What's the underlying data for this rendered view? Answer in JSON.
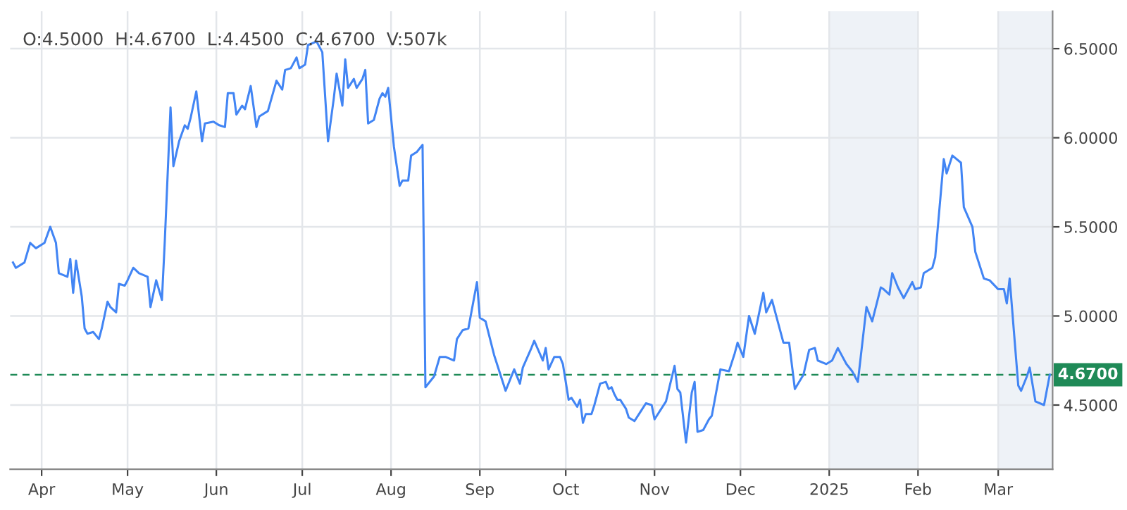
{
  "chart_data": {
    "type": "line",
    "annotations": [
      "O:4.5000  H:4.6700  L:4.4500  C:4.6700  V:507k"
    ],
    "x": [
      "2024-03-22",
      "2024-03-23",
      "2024-03-26",
      "2024-03-28",
      "2024-03-30",
      "2024-04-02",
      "2024-04-04",
      "2024-04-06",
      "2024-04-07",
      "2024-04-10",
      "2024-04-11",
      "2024-04-12",
      "2024-04-13",
      "2024-04-15",
      "2024-04-16",
      "2024-04-17",
      "2024-04-19",
      "2024-04-21",
      "2024-04-22",
      "2024-04-24",
      "2024-04-25",
      "2024-04-27",
      "2024-04-28",
      "2024-04-30",
      "2024-05-01",
      "2024-05-03",
      "2024-05-05",
      "2024-05-08",
      "2024-05-09",
      "2024-05-11",
      "2024-05-13",
      "2024-05-14",
      "2024-05-16",
      "2024-05-17",
      "2024-05-19",
      "2024-05-21",
      "2024-05-22",
      "2024-05-23",
      "2024-05-25",
      "2024-05-27",
      "2024-05-28",
      "2024-05-31",
      "2024-06-02",
      "2024-06-04",
      "2024-06-05",
      "2024-06-07",
      "2024-06-08",
      "2024-06-10",
      "2024-06-11",
      "2024-06-13",
      "2024-06-15",
      "2024-06-16",
      "2024-06-19",
      "2024-06-22",
      "2024-06-24",
      "2024-06-25",
      "2024-06-27",
      "2024-06-29",
      "2024-06-30",
      "2024-07-02",
      "2024-07-03",
      "2024-07-06",
      "2024-07-08",
      "2024-07-10",
      "2024-07-12",
      "2024-07-13",
      "2024-07-15",
      "2024-07-16",
      "2024-07-17",
      "2024-07-19",
      "2024-07-20",
      "2024-07-22",
      "2024-07-23",
      "2024-07-24",
      "2024-07-26",
      "2024-07-28",
      "2024-07-29",
      "2024-07-30",
      "2024-07-31",
      "2024-08-02",
      "2024-08-04",
      "2024-08-05",
      "2024-08-07",
      "2024-08-08",
      "2024-08-10",
      "2024-08-12",
      "2024-08-13",
      "2024-08-16",
      "2024-08-18",
      "2024-08-20",
      "2024-08-23",
      "2024-08-24",
      "2024-08-26",
      "2024-08-28",
      "2024-08-31",
      "2024-09-01",
      "2024-09-03",
      "2024-09-06",
      "2024-09-08",
      "2024-09-10",
      "2024-09-13",
      "2024-09-15",
      "2024-09-16",
      "2024-09-19",
      "2024-09-20",
      "2024-09-23",
      "2024-09-24",
      "2024-09-25",
      "2024-09-27",
      "2024-09-29",
      "2024-09-30",
      "2024-10-02",
      "2024-10-03",
      "2024-10-05",
      "2024-10-06",
      "2024-10-07",
      "2024-10-08",
      "2024-10-10",
      "2024-10-11",
      "2024-10-13",
      "2024-10-15",
      "2024-10-16",
      "2024-10-17",
      "2024-10-18",
      "2024-10-19",
      "2024-10-20",
      "2024-10-22",
      "2024-10-23",
      "2024-10-25",
      "2024-10-27",
      "2024-10-29",
      "2024-10-31",
      "2024-11-01",
      "2024-11-05",
      "2024-11-08",
      "2024-11-09",
      "2024-11-10",
      "2024-11-12",
      "2024-11-14",
      "2024-11-15",
      "2024-11-16",
      "2024-11-18",
      "2024-11-20",
      "2024-11-21",
      "2024-11-24",
      "2024-11-27",
      "2024-11-29",
      "2024-11-30",
      "2024-12-02",
      "2024-12-04",
      "2024-12-06",
      "2024-12-09",
      "2024-12-10",
      "2024-12-12",
      "2024-12-14",
      "2024-12-16",
      "2024-12-18",
      "2024-12-20",
      "2024-12-23",
      "2024-12-25",
      "2024-12-27",
      "2024-12-28",
      "2024-12-31",
      "2025-01-02",
      "2025-01-04",
      "2025-01-05",
      "2025-01-07",
      "2025-01-09",
      "2025-01-11",
      "2025-01-14",
      "2025-01-16",
      "2025-01-19",
      "2025-01-20",
      "2025-01-22",
      "2025-01-23",
      "2025-01-25",
      "2025-01-27",
      "2025-01-30",
      "2025-01-31",
      "2025-02-02",
      "2025-02-03",
      "2025-02-06",
      "2025-02-07",
      "2025-02-10",
      "2025-02-11",
      "2025-02-13",
      "2025-02-16",
      "2025-02-17",
      "2025-02-20",
      "2025-02-21",
      "2025-02-24",
      "2025-02-26",
      "2025-03-01",
      "2025-03-03",
      "2025-03-04",
      "2025-03-05",
      "2025-03-08",
      "2025-03-09",
      "2025-03-11",
      "2025-03-12",
      "2025-03-14",
      "2025-03-17",
      "2025-03-19"
    ],
    "series": [
      {
        "color": "#4285f4",
        "values": [
          5.3,
          5.27,
          5.3,
          5.41,
          5.38,
          5.41,
          5.5,
          5.41,
          5.24,
          5.22,
          5.32,
          5.13,
          5.31,
          5.11,
          4.93,
          4.9,
          4.91,
          4.87,
          4.93,
          5.08,
          5.05,
          5.02,
          5.18,
          5.17,
          5.2,
          5.27,
          5.24,
          5.22,
          5.05,
          5.2,
          5.09,
          5.42,
          6.17,
          5.84,
          5.98,
          6.07,
          6.05,
          6.11,
          6.26,
          5.98,
          6.08,
          6.09,
          6.07,
          6.06,
          6.25,
          6.25,
          6.13,
          6.18,
          6.16,
          6.29,
          6.06,
          6.12,
          6.15,
          6.32,
          6.27,
          6.38,
          6.39,
          6.45,
          6.39,
          6.41,
          6.52,
          6.54,
          6.48,
          5.98,
          6.22,
          6.36,
          6.18,
          6.44,
          6.28,
          6.33,
          6.28,
          6.33,
          6.38,
          6.08,
          6.1,
          6.22,
          6.25,
          6.23,
          6.28,
          5.95,
          5.73,
          5.76,
          5.76,
          5.9,
          5.92,
          5.96,
          4.6,
          4.66,
          4.77,
          4.77,
          4.75,
          4.87,
          4.92,
          4.93,
          5.19,
          4.99,
          4.97,
          4.78,
          4.68,
          4.58,
          4.7,
          4.62,
          4.71,
          4.82,
          4.86,
          4.75,
          4.82,
          4.7,
          4.77,
          4.77,
          4.73,
          4.53,
          4.54,
          4.49,
          4.53,
          4.4,
          4.45,
          4.45,
          4.5,
          4.62,
          4.63,
          4.59,
          4.6,
          4.56,
          4.53,
          4.53,
          4.48,
          4.43,
          4.41,
          4.46,
          4.51,
          4.5,
          4.42,
          4.52,
          4.72,
          4.59,
          4.57,
          4.29,
          4.57,
          4.63,
          4.35,
          4.36,
          4.42,
          4.44,
          4.7,
          4.69,
          4.79,
          4.85,
          4.77,
          5.0,
          4.9,
          5.13,
          5.02,
          5.09,
          4.97,
          4.85,
          4.85,
          4.59,
          4.67,
          4.81,
          4.82,
          4.75,
          4.73,
          4.75,
          4.82,
          4.79,
          4.73,
          4.69,
          4.63,
          5.05,
          4.97,
          5.16,
          5.15,
          5.12,
          5.24,
          5.16,
          5.1,
          5.19,
          5.15,
          5.16,
          5.24,
          5.27,
          5.33,
          5.88,
          5.8,
          5.9,
          5.86,
          5.61,
          5.5,
          5.36,
          5.21,
          5.2,
          5.15,
          5.15,
          5.07,
          5.21,
          4.61,
          4.58,
          4.66,
          4.71,
          4.52,
          4.5,
          4.67
        ]
      }
    ],
    "xlim": [
      "2024-03-21",
      "2025-03-20"
    ],
    "xticks": [
      {
        "value": "2024-04-01",
        "label": "Apr"
      },
      {
        "value": "2024-05-01",
        "label": "May"
      },
      {
        "value": "2024-06-01",
        "label": "Jun"
      },
      {
        "value": "2024-07-01",
        "label": "Jul"
      },
      {
        "value": "2024-08-01",
        "label": "Aug"
      },
      {
        "value": "2024-09-01",
        "label": "Sep"
      },
      {
        "value": "2024-10-01",
        "label": "Oct"
      },
      {
        "value": "2024-11-01",
        "label": "Nov"
      },
      {
        "value": "2024-12-01",
        "label": "Dec"
      },
      {
        "value": "2025-01-01",
        "label": "2025"
      },
      {
        "value": "2025-02-01",
        "label": "Feb"
      },
      {
        "value": "2025-03-01",
        "label": "Mar"
      }
    ],
    "ylim": [
      4.14,
      6.71
    ],
    "yticks": [
      {
        "value": 4.5,
        "label": "4.5000"
      },
      {
        "value": 5.0,
        "label": "5.0000"
      },
      {
        "value": 5.5,
        "label": "5.5000"
      },
      {
        "value": 6.0,
        "label": "6.0000"
      },
      {
        "value": 6.5,
        "label": "6.5000"
      }
    ],
    "grid": true,
    "bands": [
      {
        "axis": "x",
        "from": "2025-01-01",
        "to": "2025-02-01",
        "color": "#eef2f7"
      },
      {
        "axis": "x",
        "from": "2025-03-01",
        "to": "2025-03-20",
        "color": "#eef2f7"
      }
    ],
    "ref_lines": [
      {
        "axis": "y",
        "value": 4.67,
        "label": "4.6700",
        "color": "#1f8a57",
        "line_style": "dashed"
      }
    ]
  }
}
